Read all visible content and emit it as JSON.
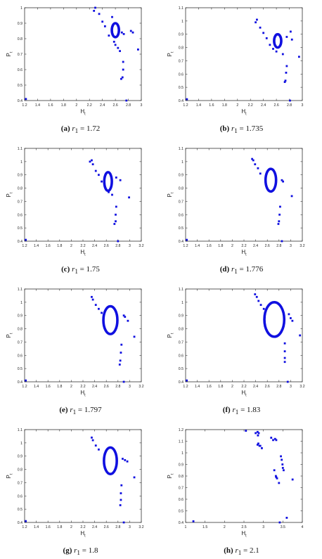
{
  "figure": {
    "panels": [
      {
        "letter": "(a)",
        "var": "r",
        "sub": "1",
        "eq": "=",
        "value": "1.72"
      },
      {
        "letter": "(b)",
        "var": "r",
        "sub": "1",
        "eq": "=",
        "value": "1.735"
      },
      {
        "letter": "(c)",
        "var": "r",
        "sub": "1",
        "eq": "=",
        "value": "1.75"
      },
      {
        "letter": "(d)",
        "var": "r",
        "sub": "1",
        "eq": "=",
        "value": "1.776"
      },
      {
        "letter": "(e)",
        "var": "r",
        "sub": "1",
        "eq": "=",
        "value": "1.797"
      },
      {
        "letter": "(f)",
        "var": "r",
        "sub": "1",
        "eq": "=",
        "value": "1.83"
      },
      {
        "letter": "(g)",
        "var": "r",
        "sub": "1",
        "eq": "=",
        "value": "1.8"
      },
      {
        "letter": "(h)",
        "var": "r",
        "sub": "1",
        "eq": "=",
        "value": "2.1"
      }
    ]
  },
  "chart_data": [
    {
      "type": "scatter",
      "xlabel": "H",
      "xlabel_sub": "t",
      "ylabel": "P",
      "ylabel_sub": "t",
      "xlim": [
        1.2,
        3.0
      ],
      "ylim": [
        0.4,
        1.0
      ],
      "xticks": [
        "1.2",
        "1.4",
        "1.6",
        "1.8",
        "2",
        "2.2",
        "2.4",
        "2.6",
        "2.8",
        "3"
      ],
      "yticks": [
        "0.4",
        "0.5",
        "0.6",
        "0.7",
        "0.8",
        "0.9",
        "1"
      ],
      "color": "#1010e0",
      "loop": {
        "cx": 2.6,
        "cy": 0.855,
        "rx": 0.055,
        "ry": 0.045
      },
      "points": [
        [
          1.22,
          0.41
        ],
        [
          2.27,
          0.98
        ],
        [
          2.29,
          1.0
        ],
        [
          2.35,
          0.96
        ],
        [
          2.4,
          0.91
        ],
        [
          2.44,
          0.88
        ],
        [
          2.5,
          0.82
        ],
        [
          2.55,
          0.94
        ],
        [
          2.58,
          0.78
        ],
        [
          2.6,
          0.76
        ],
        [
          2.64,
          0.74
        ],
        [
          2.67,
          0.72
        ],
        [
          2.7,
          0.84
        ],
        [
          2.73,
          0.83
        ],
        [
          2.84,
          0.85
        ],
        [
          2.87,
          0.84
        ],
        [
          2.95,
          0.73
        ],
        [
          2.72,
          0.65
        ],
        [
          2.72,
          0.6
        ],
        [
          2.71,
          0.55
        ],
        [
          2.69,
          0.54
        ],
        [
          2.77,
          0.4
        ]
      ]
    },
    {
      "type": "scatter",
      "xlabel": "H",
      "xlabel_sub": "t",
      "ylabel": "P",
      "ylabel_sub": "t",
      "xlim": [
        1.2,
        3.0
      ],
      "ylim": [
        0.4,
        1.1
      ],
      "xticks": [
        "1.2",
        "1.4",
        "1.6",
        "1.8",
        "2",
        "2.2",
        "2.4",
        "2.6",
        "2.8",
        "3"
      ],
      "yticks": [
        "0.4",
        "0.5",
        "0.6",
        "0.7",
        "0.8",
        "0.9",
        "1",
        "1.1"
      ],
      "color": "#1010e0",
      "loop": {
        "cx": 2.62,
        "cy": 0.85,
        "rx": 0.055,
        "ry": 0.05
      },
      "points": [
        [
          1.22,
          0.41
        ],
        [
          2.28,
          0.99
        ],
        [
          2.3,
          1.01
        ],
        [
          2.35,
          0.95
        ],
        [
          2.4,
          0.91
        ],
        [
          2.45,
          0.87
        ],
        [
          2.5,
          0.82
        ],
        [
          2.55,
          0.79
        ],
        [
          2.6,
          0.77
        ],
        [
          2.7,
          0.75
        ],
        [
          2.76,
          0.88
        ],
        [
          2.82,
          0.92
        ],
        [
          2.84,
          0.86
        ],
        [
          2.95,
          0.73
        ],
        [
          2.76,
          0.66
        ],
        [
          2.75,
          0.61
        ],
        [
          2.74,
          0.55
        ],
        [
          2.73,
          0.54
        ],
        [
          2.81,
          0.4
        ]
      ]
    },
    {
      "type": "scatter",
      "xlabel": "H",
      "xlabel_sub": "t",
      "ylabel": "P",
      "ylabel_sub": "t",
      "xlim": [
        1.2,
        3.2
      ],
      "ylim": [
        0.4,
        1.1
      ],
      "xticks": [
        "1.2",
        "1.4",
        "1.6",
        "1.8",
        "2",
        "2.2",
        "2.4",
        "2.6",
        "2.8",
        "3",
        "3.2"
      ],
      "yticks": [
        "0.4",
        "0.5",
        "0.6",
        "0.7",
        "0.8",
        "0.9",
        "1",
        "1.1"
      ],
      "color": "#1010e0",
      "loop": {
        "cx": 2.63,
        "cy": 0.85,
        "rx": 0.065,
        "ry": 0.07
      },
      "points": [
        [
          1.22,
          0.41
        ],
        [
          2.32,
          1.0
        ],
        [
          2.35,
          1.01
        ],
        [
          2.37,
          0.98
        ],
        [
          2.42,
          0.93
        ],
        [
          2.47,
          0.9
        ],
        [
          2.52,
          0.85
        ],
        [
          2.57,
          0.83
        ],
        [
          2.64,
          0.77
        ],
        [
          2.7,
          0.75
        ],
        [
          2.77,
          0.88
        ],
        [
          2.84,
          0.86
        ],
        [
          2.99,
          0.73
        ],
        [
          2.77,
          0.66
        ],
        [
          2.76,
          0.6
        ],
        [
          2.76,
          0.55
        ],
        [
          2.74,
          0.53
        ],
        [
          2.8,
          0.4
        ]
      ]
    },
    {
      "type": "scatter",
      "xlabel": "H",
      "xlabel_sub": "t",
      "ylabel": "P",
      "ylabel_sub": "t",
      "xlim": [
        1.2,
        3.2
      ],
      "ylim": [
        0.4,
        1.1
      ],
      "xticks": [
        "1.2",
        "1.4",
        "1.6",
        "1.8",
        "2",
        "2.2",
        "2.4",
        "2.6",
        "2.8",
        "3",
        "3.2"
      ],
      "yticks": [
        "0.4",
        "0.5",
        "0.6",
        "0.7",
        "0.8",
        "0.9",
        "1",
        "1.1"
      ],
      "color": "#1010e0",
      "loop": {
        "cx": 2.66,
        "cy": 0.86,
        "rx": 0.09,
        "ry": 0.085
      },
      "points": [
        [
          1.22,
          0.41
        ],
        [
          2.34,
          1.02
        ],
        [
          2.36,
          1.01
        ],
        [
          2.39,
          0.98
        ],
        [
          2.44,
          0.95
        ],
        [
          2.48,
          0.91
        ],
        [
          2.85,
          0.86
        ],
        [
          2.87,
          0.85
        ],
        [
          3.02,
          0.74
        ],
        [
          2.82,
          0.66
        ],
        [
          2.81,
          0.6
        ],
        [
          2.8,
          0.55
        ],
        [
          2.79,
          0.53
        ],
        [
          2.85,
          0.4
        ]
      ]
    },
    {
      "type": "scatter",
      "xlabel": "H",
      "xlabel_sub": "t",
      "ylabel": "P",
      "ylabel_sub": "t",
      "xlim": [
        1.2,
        3.2
      ],
      "ylim": [
        0.4,
        1.1
      ],
      "xticks": [
        "1.2",
        "1.4",
        "1.6",
        "1.8",
        "2",
        "2.2",
        "2.4",
        "2.6",
        "2.8",
        "3",
        "3.2"
      ],
      "yticks": [
        "0.4",
        "0.5",
        "0.6",
        "0.7",
        "0.8",
        "0.9",
        "1",
        "1.1"
      ],
      "color": "#1010e0",
      "loop": {
        "cx": 2.67,
        "cy": 0.865,
        "rx": 0.12,
        "ry": 0.105
      },
      "points": [
        [
          1.22,
          0.41
        ],
        [
          2.35,
          1.04
        ],
        [
          2.37,
          1.02
        ],
        [
          2.42,
          0.98
        ],
        [
          2.47,
          0.95
        ],
        [
          2.52,
          0.92
        ],
        [
          2.9,
          0.9
        ],
        [
          2.92,
          0.89
        ],
        [
          2.97,
          0.86
        ],
        [
          3.08,
          0.74
        ],
        [
          2.86,
          0.68
        ],
        [
          2.85,
          0.62
        ],
        [
          2.84,
          0.56
        ],
        [
          2.83,
          0.53
        ],
        [
          2.9,
          0.4
        ]
      ]
    },
    {
      "type": "scatter",
      "xlabel": "H",
      "xlabel_sub": "t",
      "ylabel": "P",
      "ylabel_sub": "t",
      "xlim": [
        1.2,
        3.2
      ],
      "ylim": [
        0.4,
        1.1
      ],
      "xticks": [
        "1.2",
        "1.4",
        "1.6",
        "1.8",
        "2",
        "2.2",
        "2.4",
        "2.6",
        "2.8",
        "3",
        "3.2"
      ],
      "yticks": [
        "0.4",
        "0.5",
        "0.6",
        "0.7",
        "0.8",
        "0.9",
        "1",
        "1.1"
      ],
      "color": "#1010e0",
      "loop": {
        "cx": 2.72,
        "cy": 0.87,
        "rx": 0.17,
        "ry": 0.13
      },
      "points": [
        [
          1.22,
          0.41
        ],
        [
          2.39,
          1.06
        ],
        [
          2.42,
          1.04
        ],
        [
          2.45,
          1.01
        ],
        [
          2.49,
          0.98
        ],
        [
          2.54,
          0.95
        ],
        [
          2.97,
          0.91
        ],
        [
          3.0,
          0.88
        ],
        [
          3.03,
          0.86
        ],
        [
          3.16,
          0.75
        ],
        [
          2.9,
          0.69
        ],
        [
          2.9,
          0.63
        ],
        [
          2.9,
          0.58
        ],
        [
          2.9,
          0.55
        ],
        [
          2.95,
          0.4
        ]
      ]
    },
    {
      "type": "scatter",
      "xlabel": "H",
      "xlabel_sub": "t",
      "ylabel": "P",
      "ylabel_sub": "t",
      "xlim": [
        1.2,
        3.2
      ],
      "ylim": [
        0.4,
        1.1
      ],
      "xticks": [
        "1.2",
        "1.4",
        "1.6",
        "1.8",
        "2",
        "2.2",
        "2.4",
        "2.6",
        "2.8",
        "3",
        "3.2"
      ],
      "yticks": [
        "0.4",
        "0.5",
        "0.6",
        "0.7",
        "0.8",
        "0.9",
        "1",
        "1.1"
      ],
      "color": "#1010e0",
      "loop": {
        "cx": 2.67,
        "cy": 0.865,
        "rx": 0.11,
        "ry": 0.1
      },
      "points": [
        [
          1.22,
          0.41
        ],
        [
          2.35,
          1.04
        ],
        [
          2.37,
          1.02
        ],
        [
          2.42,
          0.98
        ],
        [
          2.47,
          0.95
        ],
        [
          2.88,
          0.88
        ],
        [
          2.92,
          0.87
        ],
        [
          2.96,
          0.86
        ],
        [
          3.08,
          0.74
        ],
        [
          2.86,
          0.68
        ],
        [
          2.85,
          0.62
        ],
        [
          2.85,
          0.57
        ],
        [
          2.84,
          0.53
        ],
        [
          2.9,
          0.4
        ]
      ]
    },
    {
      "type": "scatter",
      "xlabel": "H",
      "xlabel_sub": "t",
      "ylabel": "P",
      "ylabel_sub": "t",
      "xlim": [
        1,
        4
      ],
      "ylim": [
        0.4,
        1.2
      ],
      "xticks": [
        "1",
        "1.5",
        "2",
        "2.5",
        "3",
        "3.5",
        "4"
      ],
      "yticks": [
        "0.4",
        "0.5",
        "0.6",
        "0.7",
        "0.8",
        "0.9",
        "1",
        "1.1",
        "1.2"
      ],
      "color": "#1010e0",
      "loop": null,
      "points": [
        [
          1.2,
          0.41
        ],
        [
          2.55,
          1.19
        ],
        [
          2.8,
          1.17
        ],
        [
          2.85,
          1.18
        ],
        [
          2.88,
          1.17
        ],
        [
          2.86,
          1.15
        ],
        [
          2.85,
          1.07
        ],
        [
          2.87,
          1.08
        ],
        [
          2.92,
          1.06
        ],
        [
          2.96,
          1.04
        ],
        [
          2.9,
          1.06
        ],
        [
          3.2,
          1.13
        ],
        [
          3.25,
          1.11
        ],
        [
          3.3,
          1.12
        ],
        [
          3.33,
          1.11
        ],
        [
          3.28,
          0.85
        ],
        [
          3.32,
          0.8
        ],
        [
          3.33,
          0.79
        ],
        [
          3.35,
          0.78
        ],
        [
          3.4,
          0.74
        ],
        [
          3.45,
          0.97
        ],
        [
          3.47,
          0.94
        ],
        [
          3.49,
          0.9
        ],
        [
          3.5,
          0.87
        ],
        [
          3.52,
          0.85
        ],
        [
          3.75,
          0.77
        ],
        [
          3.6,
          0.44
        ],
        [
          3.42,
          0.4
        ]
      ]
    }
  ]
}
